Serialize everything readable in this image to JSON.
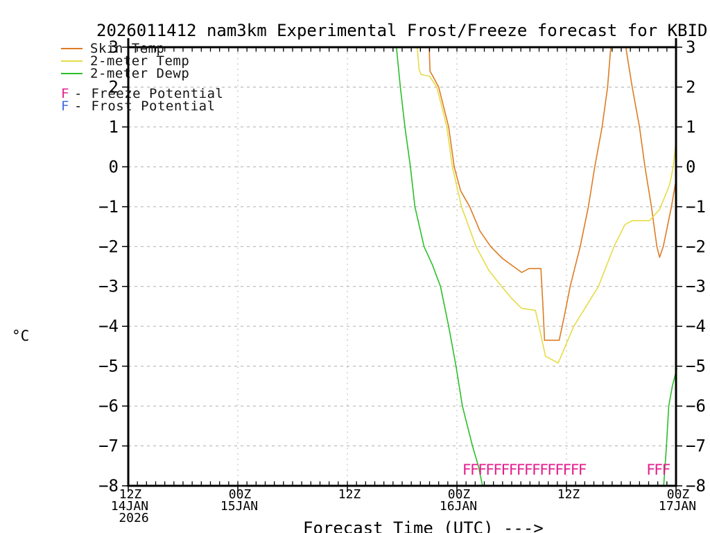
{
  "title": "2026011412 nam3km Experimental Frost/Freeze forecast for KBID",
  "legend": {
    "series": [
      {
        "label": "Skin Temp",
        "color": "#dd7b22"
      },
      {
        "label": "2-meter Temp",
        "color": "#e5dc45"
      },
      {
        "label": "2-meter Dewp",
        "color": "#2abf2a"
      }
    ],
    "flags": [
      {
        "symbol": "F",
        "separator": "-",
        "label": "Freeze Potential",
        "color": "#e51d8c"
      },
      {
        "symbol": "F",
        "separator": "-",
        "label": "Frost Potential",
        "color": "#4169e1"
      }
    ]
  },
  "chart_data": {
    "type": "line",
    "title": "2026011412 nam3km Experimental Frost/Freeze forecast for KBID",
    "x_axis": {
      "title": "Forecast Time (UTC) --->",
      "start": "12Z 14JAN 2026",
      "end": "00Z 17JAN 2026",
      "hours_span": 60,
      "major_tick_every_hours": 12,
      "minor_tick_every_hours": 1,
      "ticks": [
        {
          "hour": 0,
          "label": "12Z",
          "date": "14JAN",
          "year": "2026"
        },
        {
          "hour": 12,
          "label": "00Z",
          "date": "15JAN"
        },
        {
          "hour": 24,
          "label": "12Z"
        },
        {
          "hour": 36,
          "label": "00Z",
          "date": "16JAN"
        },
        {
          "hour": 48,
          "label": "12Z"
        },
        {
          "hour": 60,
          "label": "00Z",
          "date": "17JAN"
        }
      ]
    },
    "y_axis": {
      "unit": "°C",
      "min": -8,
      "max": 3,
      "tick_step": 1,
      "tick_labels": [
        "3",
        "2",
        "1",
        "0",
        "−1",
        "−2",
        "−3",
        "−4",
        "−5",
        "−6",
        "−7",
        "−8"
      ]
    },
    "grid": {
      "color": "#adadad",
      "horizontal_dash": "4 5",
      "vertical_dash": "1.8 6"
    },
    "series": [
      {
        "name": "Skin Temp",
        "color": "#dd7b22",
        "segments": [
          [
            [
              32.9,
              3.4
            ],
            [
              33.05,
              2.4
            ],
            [
              33.3,
              2.3
            ],
            [
              34.0,
              2.0
            ],
            [
              35.1,
              1.0
            ],
            [
              35.7,
              0.0
            ],
            [
              36.4,
              -0.6
            ],
            [
              37.4,
              -1.0
            ],
            [
              38.5,
              -1.6
            ],
            [
              39.7,
              -2.0
            ],
            [
              41.0,
              -2.3
            ],
            [
              42.2,
              -2.5
            ],
            [
              43.1,
              -2.65
            ],
            [
              43.9,
              -2.55
            ],
            [
              45.2,
              -2.55
            ],
            [
              45.4,
              -3.4
            ],
            [
              45.6,
              -4.35
            ],
            [
              47.2,
              -4.35
            ],
            [
              47.8,
              -3.7
            ],
            [
              48.4,
              -3.0
            ],
            [
              49.5,
              -2.0
            ],
            [
              50.4,
              -1.0
            ],
            [
              51.1,
              0.0
            ],
            [
              51.9,
              1.0
            ],
            [
              52.5,
              2.0
            ],
            [
              52.85,
              3.0
            ],
            [
              53.1,
              3.4
            ],
            [
              54.2,
              3.4
            ],
            [
              54.5,
              3.0
            ],
            [
              55.2,
              2.0
            ],
            [
              56.0,
              1.0
            ],
            [
              56.6,
              0.0
            ],
            [
              57.3,
              -1.0
            ],
            [
              57.9,
              -2.0
            ],
            [
              58.2,
              -2.27
            ],
            [
              58.6,
              -2.0
            ],
            [
              59.5,
              -1.0
            ],
            [
              60.0,
              -0.33
            ]
          ]
        ]
      },
      {
        "name": "2-meter Temp",
        "color": "#e5dc45",
        "segments": [
          [
            [
              31.5,
              3.4
            ],
            [
              31.85,
              2.45
            ],
            [
              32.05,
              2.32
            ],
            [
              33.0,
              2.27
            ],
            [
              33.8,
              2.0
            ],
            [
              34.9,
              1.0
            ],
            [
              35.5,
              0.0
            ],
            [
              36.5,
              -1.0
            ],
            [
              38.1,
              -2.0
            ],
            [
              39.5,
              -2.6
            ],
            [
              40.9,
              -3.0
            ],
            [
              42.0,
              -3.3
            ],
            [
              43.1,
              -3.55
            ],
            [
              44.6,
              -3.6
            ],
            [
              44.8,
              -3.8
            ],
            [
              45.7,
              -4.75
            ],
            [
              47.1,
              -4.92
            ],
            [
              48.8,
              -4.0
            ],
            [
              51.5,
              -3.0
            ],
            [
              53.2,
              -2.0
            ],
            [
              54.4,
              -1.45
            ],
            [
              55.2,
              -1.35
            ],
            [
              57.1,
              -1.35
            ],
            [
              58.2,
              -1.07
            ],
            [
              59.3,
              -0.45
            ],
            [
              59.7,
              0.0
            ],
            [
              60.0,
              0.66
            ]
          ]
        ]
      },
      {
        "name": "2-meter Dewp",
        "color": "#2abf2a",
        "segments": [
          [
            [
              29.2,
              3.4
            ],
            [
              29.8,
              2.0
            ],
            [
              30.3,
              1.0
            ],
            [
              30.9,
              0.0
            ],
            [
              31.4,
              -1.0
            ],
            [
              32.4,
              -2.0
            ],
            [
              33.3,
              -2.45
            ],
            [
              34.2,
              -3.0
            ],
            [
              35.1,
              -4.0
            ],
            [
              35.9,
              -5.0
            ],
            [
              36.6,
              -6.0
            ],
            [
              37.7,
              -7.0
            ],
            [
              38.35,
              -7.5
            ],
            [
              38.8,
              -8.0
            ],
            [
              38.95,
              -8.4
            ]
          ],
          [
            [
              58.5,
              -8.4
            ],
            [
              58.65,
              -8.0
            ],
            [
              58.95,
              -7.0
            ],
            [
              59.2,
              -6.0
            ],
            [
              59.6,
              -5.5
            ],
            [
              60.1,
              -5.05
            ]
          ]
        ]
      }
    ],
    "freeze_markers": {
      "symbol": "F",
      "color": "#e51d8c",
      "temp": -7.6,
      "groups": [
        {
          "start_hour": 36.6,
          "count": 16,
          "spacing_hours": 0.845
        },
        {
          "start_hour": 56.75,
          "count": 3,
          "spacing_hours": 0.845
        }
      ]
    },
    "frost_markers": {
      "symbol": "F",
      "color": "#4169e1",
      "groups": []
    }
  }
}
